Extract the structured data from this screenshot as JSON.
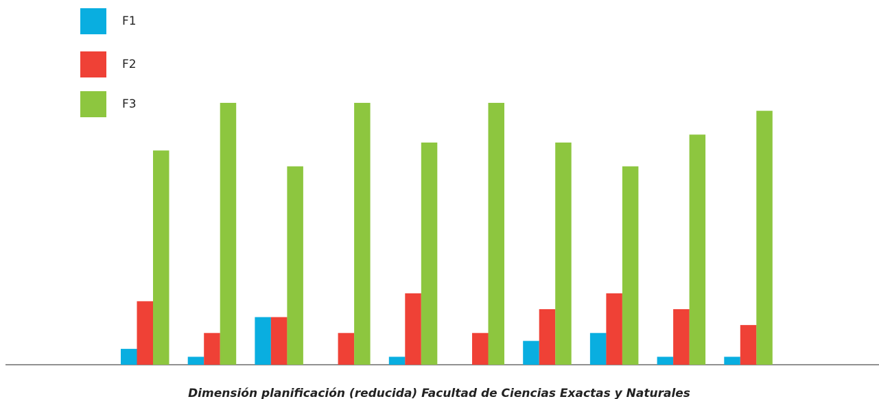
{
  "chart_data": {
    "type": "bar",
    "title": "Dimensión planificación (reducida) Facultad de Ciencias Exactas y Naturales",
    "series": [
      {
        "name": "F1",
        "color": "#09aee0",
        "values": [
          2,
          1,
          6,
          0,
          1,
          0,
          3,
          4,
          1,
          1
        ]
      },
      {
        "name": "F2",
        "color": "#ef4136",
        "values": [
          8,
          4,
          6,
          4,
          9,
          4,
          7,
          9,
          7,
          5
        ]
      },
      {
        "name": "F3",
        "color": "#8dc63f",
        "values": [
          27,
          33,
          25,
          33,
          28,
          33,
          28,
          25,
          29,
          32
        ]
      }
    ],
    "ylim": [
      0,
      40
    ]
  }
}
